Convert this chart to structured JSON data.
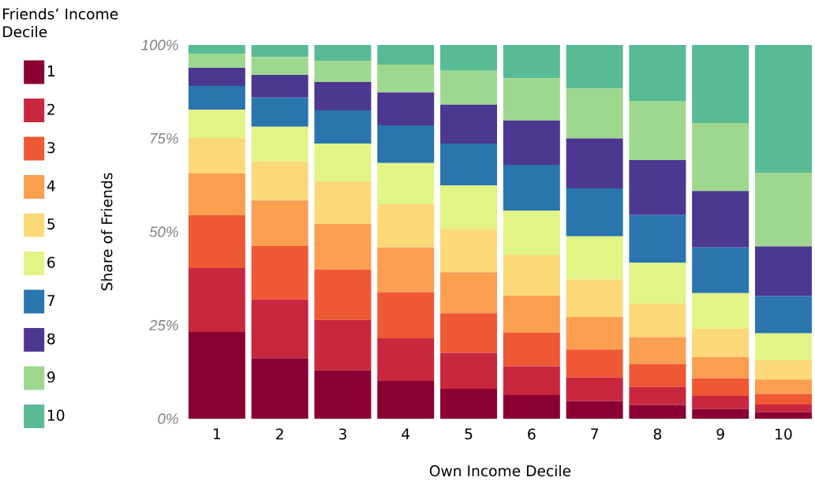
{
  "chart_data": {
    "type": "bar",
    "stacked": true,
    "xlabel": "Own Income Decile",
    "ylabel": "Share of Friends",
    "legend_title": "Friends’ Income Decile",
    "legend": "left",
    "grid": false,
    "categories": [
      "1",
      "2",
      "3",
      "4",
      "5",
      "6",
      "7",
      "8",
      "9",
      "10"
    ],
    "ylim": [
      0,
      100
    ],
    "yticks": [
      {
        "value": 0,
        "label": "0%"
      },
      {
        "value": 25,
        "label": "25%"
      },
      {
        "value": 50,
        "label": "50%"
      },
      {
        "value": 75,
        "label": "75%"
      },
      {
        "value": 100,
        "label": "100%"
      }
    ],
    "series": [
      {
        "name": "1",
        "color": "#8b0033",
        "values": [
          23.2,
          16.2,
          12.9,
          10.1,
          8.0,
          6.3,
          4.7,
          3.7,
          2.6,
          1.8
        ]
      },
      {
        "name": "2",
        "color": "#c8273d",
        "values": [
          17.1,
          15.7,
          13.5,
          11.4,
          9.6,
          7.7,
          6.3,
          4.8,
          3.5,
          2.0
        ]
      },
      {
        "name": "3",
        "color": "#ef5835",
        "values": [
          14.1,
          14.3,
          13.5,
          12.3,
          10.6,
          9.0,
          7.5,
          6.1,
          4.7,
          2.8
        ]
      },
      {
        "name": "4",
        "color": "#fa9e50",
        "values": [
          11.2,
          12.2,
          12.2,
          12.0,
          11.0,
          9.9,
          8.7,
          7.2,
          5.7,
          3.9
        ]
      },
      {
        "name": "5",
        "color": "#fbd878",
        "values": [
          9.5,
          10.4,
          11.4,
          11.6,
          11.6,
          10.9,
          10.0,
          9.0,
          7.6,
          5.1
        ]
      },
      {
        "name": "6",
        "color": "#e1f485",
        "values": [
          7.6,
          9.3,
          10.1,
          11.0,
          11.6,
          11.9,
          11.6,
          10.9,
          9.5,
          7.2
        ]
      },
      {
        "name": "7",
        "color": "#2a75ae",
        "values": [
          6.3,
          7.8,
          8.9,
          10.1,
          11.2,
          12.2,
          12.8,
          12.8,
          12.2,
          10.0
        ]
      },
      {
        "name": "8",
        "color": "#4c3890",
        "values": [
          4.9,
          6.1,
          7.6,
          8.8,
          10.4,
          11.9,
          13.4,
          14.7,
          15.1,
          13.3
        ]
      },
      {
        "name": "9",
        "color": "#9ed88f",
        "values": [
          3.8,
          4.8,
          5.7,
          7.4,
          9.1,
          11.3,
          13.3,
          15.8,
          18.2,
          19.7
        ]
      },
      {
        "name": "10",
        "color": "#58bb93",
        "values": [
          2.3,
          3.2,
          4.2,
          5.3,
          6.9,
          8.9,
          11.7,
          15.0,
          20.9,
          34.2
        ]
      }
    ]
  }
}
